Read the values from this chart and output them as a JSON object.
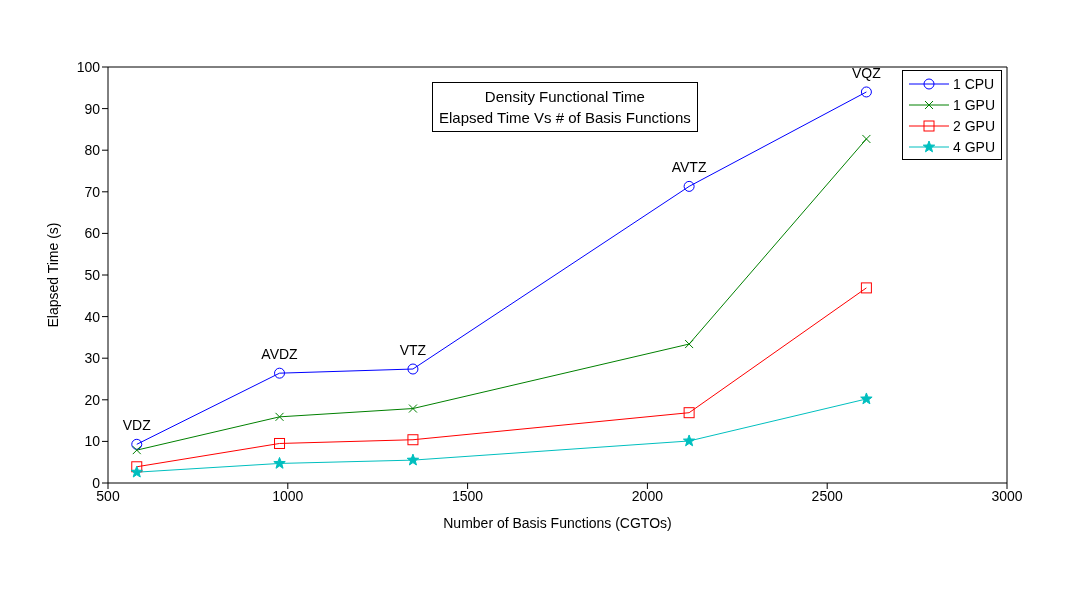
{
  "chart_data": {
    "type": "line",
    "title": "Density Functional Time",
    "subtitle": "Elapsed Time Vs # of Basis Functions",
    "xlabel": "Number of Basis Functions (CGTOs)",
    "ylabel": "Elapsed Time (s)",
    "x": [
      580,
      977,
      1348,
      2116,
      2609
    ],
    "series": [
      {
        "name": "1 CPU",
        "color": "#0000ff",
        "marker": "circle",
        "values": [
          9.3,
          26.4,
          27.4,
          71.3,
          94.0
        ]
      },
      {
        "name": "1 GPU",
        "color": "#008000",
        "marker": "cross",
        "values": [
          7.9,
          15.9,
          17.9,
          33.4,
          82.7
        ]
      },
      {
        "name": "2 GPU",
        "color": "#ff0000",
        "marker": "square",
        "values": [
          3.9,
          9.5,
          10.4,
          16.9,
          46.9
        ]
      },
      {
        "name": "4 GPU",
        "color": "#00bfbf",
        "marker": "star",
        "values": [
          2.6,
          4.7,
          5.5,
          10.1,
          20.2
        ]
      }
    ],
    "annotations": [
      {
        "text": "VDZ",
        "x": 580,
        "y": 9.3
      },
      {
        "text": "AVDZ",
        "x": 977,
        "y": 26.4
      },
      {
        "text": "VTZ",
        "x": 1348,
        "y": 27.4
      },
      {
        "text": "AVTZ",
        "x": 2116,
        "y": 71.3
      },
      {
        "text": "VQZ",
        "x": 2609,
        "y": 94.0
      }
    ],
    "xlim": [
      500,
      3000
    ],
    "xticks": [
      500,
      1000,
      1500,
      2000,
      2500,
      3000
    ],
    "ylim": [
      0,
      100
    ],
    "yticks": [
      0,
      10,
      20,
      30,
      40,
      50,
      60,
      70,
      80,
      90,
      100
    ],
    "grid": false,
    "legend": "top right",
    "line_style": "solid"
  }
}
